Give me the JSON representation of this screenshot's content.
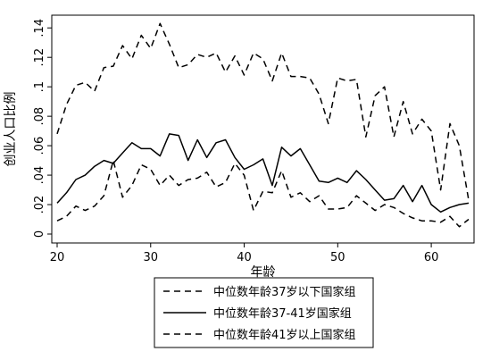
{
  "chart_data": {
    "type": "line",
    "xlabel": "年龄",
    "ylabel": "创业人口比例",
    "xlim": [
      20,
      64
    ],
    "ylim": [
      0,
      0.145
    ],
    "xticks": [
      20,
      30,
      40,
      50,
      60
    ],
    "yticks": [
      0,
      0.02,
      0.04,
      0.06,
      0.08,
      0.1,
      0.12,
      0.14
    ],
    "ytick_labels": [
      "0",
      ".02",
      ".04",
      ".06",
      ".08",
      ".1",
      ".12",
      ".14"
    ],
    "grid": false,
    "legend_position": "bottom",
    "series": [
      {
        "name": "中位数年龄37岁以下国家组",
        "line_style": "dashed",
        "color": "#000000",
        "x": [
          20,
          21,
          22,
          23,
          24,
          25,
          26,
          27,
          28,
          29,
          30,
          31,
          32,
          33,
          34,
          35,
          36,
          37,
          38,
          39,
          40,
          41,
          42,
          43,
          44,
          45,
          46,
          47,
          48,
          49,
          50,
          51,
          52,
          53,
          54,
          55,
          56,
          57,
          58,
          59,
          60,
          61,
          62,
          63,
          64
        ],
        "values": [
          0.068,
          0.088,
          0.101,
          0.103,
          0.097,
          0.113,
          0.114,
          0.128,
          0.119,
          0.135,
          0.126,
          0.143,
          0.129,
          0.113,
          0.115,
          0.122,
          0.12,
          0.123,
          0.11,
          0.121,
          0.108,
          0.123,
          0.119,
          0.104,
          0.123,
          0.107,
          0.107,
          0.106,
          0.095,
          0.075,
          0.106,
          0.104,
          0.105,
          0.066,
          0.094,
          0.1,
          0.066,
          0.09,
          0.068,
          0.078,
          0.07,
          0.03,
          0.075,
          0.06,
          0.023
        ]
      },
      {
        "name": "中位数年龄37-41岁国家组",
        "line_style": "solid",
        "color": "#000000",
        "x": [
          20,
          21,
          22,
          23,
          24,
          25,
          26,
          27,
          28,
          29,
          30,
          31,
          32,
          33,
          34,
          35,
          36,
          37,
          38,
          39,
          40,
          41,
          42,
          43,
          44,
          45,
          46,
          47,
          48,
          49,
          50,
          51,
          52,
          53,
          54,
          55,
          56,
          57,
          58,
          59,
          60,
          61,
          62,
          63,
          64
        ],
        "values": [
          0.021,
          0.028,
          0.037,
          0.04,
          0.046,
          0.05,
          0.048,
          0.055,
          0.062,
          0.058,
          0.058,
          0.053,
          0.068,
          0.067,
          0.05,
          0.064,
          0.052,
          0.062,
          0.064,
          0.052,
          0.044,
          0.047,
          0.051,
          0.033,
          0.059,
          0.053,
          0.058,
          0.047,
          0.036,
          0.035,
          0.038,
          0.035,
          0.043,
          0.037,
          0.03,
          0.023,
          0.024,
          0.033,
          0.022,
          0.033,
          0.02,
          0.015,
          0.018,
          0.02,
          0.021
        ]
      },
      {
        "name": "中位数年龄41岁以上国家组",
        "line_style": "dashed",
        "color": "#000000",
        "x": [
          20,
          21,
          22,
          23,
          24,
          25,
          26,
          27,
          28,
          29,
          30,
          31,
          32,
          33,
          34,
          35,
          36,
          37,
          38,
          39,
          40,
          41,
          42,
          43,
          44,
          45,
          46,
          47,
          48,
          49,
          50,
          51,
          52,
          53,
          54,
          55,
          56,
          57,
          58,
          59,
          60,
          61,
          62,
          63,
          64
        ],
        "values": [
          0.009,
          0.012,
          0.019,
          0.016,
          0.019,
          0.026,
          0.05,
          0.025,
          0.033,
          0.047,
          0.044,
          0.033,
          0.04,
          0.033,
          0.037,
          0.038,
          0.042,
          0.032,
          0.035,
          0.048,
          0.04,
          0.016,
          0.029,
          0.028,
          0.043,
          0.025,
          0.028,
          0.022,
          0.026,
          0.017,
          0.017,
          0.018,
          0.026,
          0.021,
          0.016,
          0.02,
          0.018,
          0.014,
          0.011,
          0.009,
          0.009,
          0.008,
          0.012,
          0.005,
          0.01
        ]
      }
    ]
  }
}
